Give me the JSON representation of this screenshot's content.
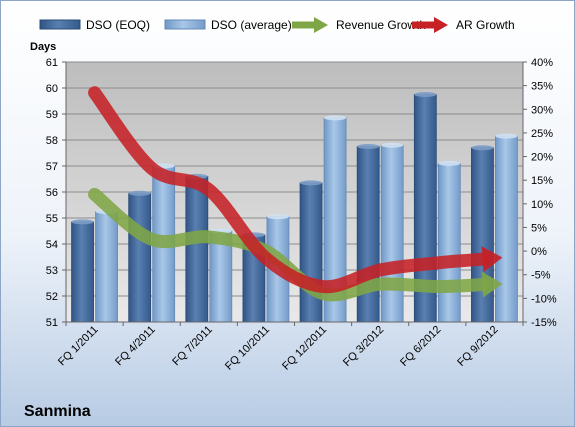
{
  "chart_data": {
    "type": "bar",
    "title": "Sanmina",
    "ylabel": "Days",
    "categories": [
      "FQ 1/2011",
      "FQ 4/2011",
      "FQ 7/2011",
      "FQ 10/2011",
      "FQ 12/2011",
      "FQ 3/2012",
      "FQ 6/2012",
      "FQ 9/2012"
    ],
    "ylim": [
      51,
      61
    ],
    "y_ticks": [
      "51",
      "52",
      "53",
      "54",
      "55",
      "56",
      "57",
      "58",
      "59",
      "60",
      "61"
    ],
    "y2lim": [
      -15,
      40
    ],
    "y2_ticks": [
      "-15%",
      "-10%",
      "-5%",
      "0%",
      "5%",
      "10%",
      "15%",
      "20%",
      "25%",
      "30%",
      "35%",
      "40%"
    ],
    "grid": true,
    "legend_position": "top",
    "series": [
      {
        "name": "DSO (EOQ)",
        "kind": "bar",
        "axis": "left",
        "color": "#4a6fa0",
        "values": [
          54.85,
          55.95,
          56.6,
          54.35,
          56.35,
          57.75,
          59.75,
          57.7
        ]
      },
      {
        "name": "DSO (average)",
        "kind": "bar",
        "axis": "left",
        "color": "#8fb4dc",
        "values": [
          55.25,
          57.0,
          54.5,
          55.05,
          58.85,
          57.8,
          57.1,
          58.15
        ]
      },
      {
        "name": "Revenue Growth",
        "kind": "arrow",
        "axis": "right",
        "color": "#7fa646",
        "values": [
          12,
          2.5,
          3,
          0,
          -9,
          -7,
          -7.5,
          -7
        ]
      },
      {
        "name": "AR Growth",
        "kind": "arrow",
        "axis": "right",
        "color": "#c62125",
        "values": [
          33.5,
          17.5,
          13,
          -1.5,
          -7.5,
          -4,
          -2.5,
          -1.5
        ]
      }
    ]
  }
}
